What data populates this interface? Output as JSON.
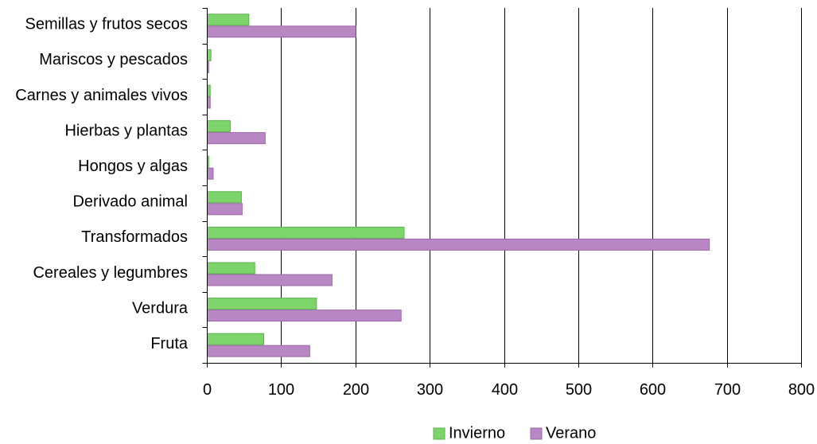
{
  "chart_data": {
    "type": "bar",
    "orientation": "horizontal",
    "title": "",
    "xlabel": "",
    "ylabel": "",
    "xlim": [
      0,
      800
    ],
    "xticks": [
      0,
      100,
      200,
      300,
      400,
      500,
      600,
      700,
      800
    ],
    "xtick_labels": [
      "0",
      "100",
      "200",
      "300",
      "400",
      "500",
      "600",
      "700",
      "800"
    ],
    "grid": "vertical",
    "legend_placement": "bottom-center",
    "categories": [
      "Semillas y frutos secos",
      "Mariscos y pescados",
      "Carnes y animales vivos",
      "Hierbas y plantas",
      "Hongos y algas",
      "Derivado animal",
      "Transformados",
      "Cereales y legumbres",
      "Verdura",
      "Fruta"
    ],
    "series": [
      {
        "name": "Invierno",
        "color": "#7cd46b",
        "values": [
          56,
          5,
          4,
          31,
          2,
          46,
          265,
          64,
          147,
          76
        ]
      },
      {
        "name": "Verano",
        "color": "#b987c3",
        "values": [
          200,
          2,
          4,
          78,
          8,
          47,
          676,
          168,
          261,
          138
        ]
      }
    ]
  }
}
